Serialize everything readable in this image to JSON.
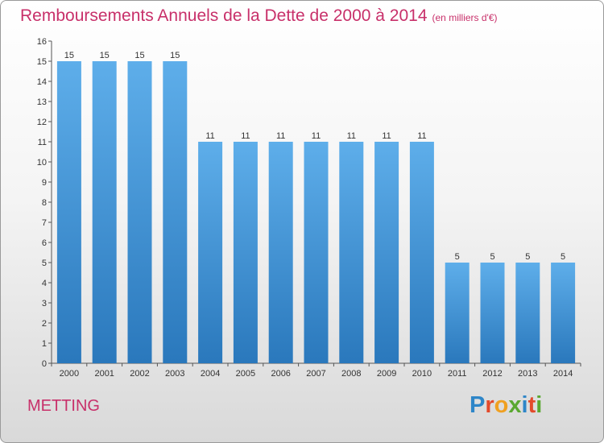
{
  "header": {
    "title": "Remboursements Annuels de la Dette de 2000 à 2014",
    "subtitle": "(en milliers d'€)"
  },
  "commune": "METTING",
  "logo": {
    "text": "Proxiti",
    "letters": [
      {
        "char": "P",
        "color": "#2e86c8"
      },
      {
        "char": "r",
        "color": "#e34a2b"
      },
      {
        "char": "o",
        "color": "#f0a020"
      },
      {
        "char": "x",
        "color": "#5aa830"
      },
      {
        "char": "i",
        "color": "#2e86c8"
      },
      {
        "char": "t",
        "color": "#e34a2b"
      },
      {
        "char": "i",
        "color": "#5aa830"
      }
    ]
  },
  "colors": {
    "accent": "#c8306a",
    "bar_light": "#5eaeea",
    "bar_dark": "#2a78bc"
  },
  "chart_data": {
    "type": "bar",
    "title": "Remboursements Annuels de la Dette de 2000 à 2014",
    "subtitle": "(en milliers d'€)",
    "xlabel": "",
    "ylabel": "",
    "categories": [
      "2000",
      "2001",
      "2002",
      "2003",
      "2004",
      "2005",
      "2006",
      "2007",
      "2008",
      "2009",
      "2010",
      "2011",
      "2012",
      "2013",
      "2014"
    ],
    "values": [
      15,
      15,
      15,
      15,
      11,
      11,
      11,
      11,
      11,
      11,
      11,
      5,
      5,
      5,
      5
    ],
    "ylim": [
      0,
      16
    ],
    "yticks": [
      0,
      1,
      2,
      3,
      4,
      5,
      6,
      7,
      8,
      9,
      10,
      11,
      12,
      13,
      14,
      15,
      16
    ],
    "grid": false,
    "legend": "none"
  }
}
